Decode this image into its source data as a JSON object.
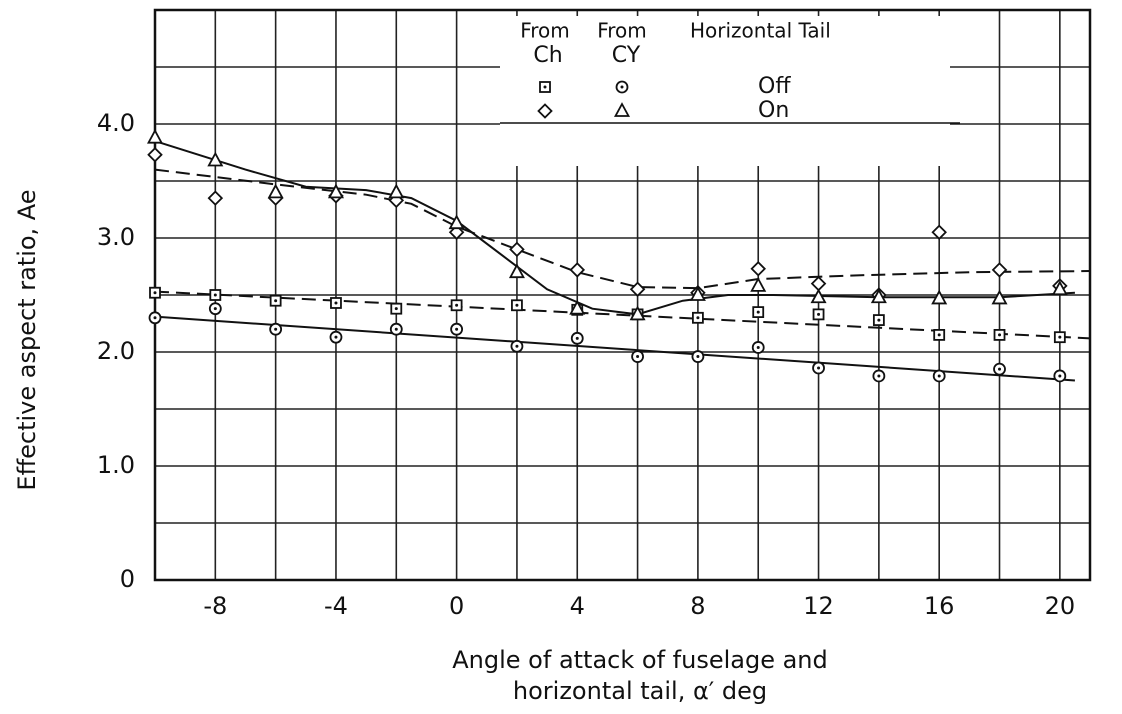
{
  "chart_data": {
    "type": "scatter",
    "xlabel": [
      "Angle of attack of fuselage and",
      "horizontal tail, α′ deg"
    ],
    "ylabel": "Effective aspect ratio, Ae",
    "xlim": [
      -10,
      21
    ],
    "ylim": [
      0,
      5
    ],
    "xticks": [
      -8,
      -4,
      0,
      4,
      8,
      12,
      16,
      20
    ],
    "yticks": [
      0,
      {
        "value": 1,
        "label": "1.0"
      },
      {
        "value": 2,
        "label": "2.0"
      },
      {
        "value": 3,
        "label": "3.0"
      },
      {
        "value": 4,
        "label": "4.0"
      }
    ],
    "xgrid": [
      -10,
      -8,
      -6,
      -4,
      -2,
      0,
      2,
      4,
      6,
      8,
      10,
      12,
      14,
      16,
      18,
      20
    ],
    "ygrid": [
      0.5,
      1,
      1.5,
      2,
      2.5,
      3,
      3.5,
      4,
      4.5
    ],
    "grid": true,
    "color": "#111111",
    "x": [
      -10,
      -8,
      -6,
      -4,
      -2,
      0,
      2,
      4,
      6,
      8,
      10,
      12,
      14,
      16,
      18,
      20
    ],
    "legend": {
      "columns": [
        "From",
        "From"
      ],
      "subcolumns": [
        "Ch",
        "CY"
      ],
      "header": "Horizontal Tail",
      "rows": [
        "Off",
        "On"
      ]
    },
    "series": [
      {
        "marker": "square",
        "values": [
          2.52,
          2.5,
          2.45,
          2.43,
          2.38,
          2.41,
          2.41,
          2.37,
          2.33,
          2.3,
          2.35,
          2.33,
          2.28,
          2.15,
          2.15,
          2.13
        ]
      },
      {
        "marker": "circle",
        "values": [
          2.3,
          2.38,
          2.2,
          2.13,
          2.2,
          2.2,
          2.05,
          2.12,
          1.96,
          1.96,
          2.04,
          1.86,
          1.79,
          1.79,
          1.85,
          1.79
        ]
      },
      {
        "marker": "diamond",
        "values": [
          3.73,
          3.35,
          3.35,
          3.37,
          3.33,
          3.05,
          2.9,
          2.72,
          2.55,
          2.52,
          2.73,
          2.6,
          2.5,
          3.05,
          2.72,
          2.58
        ]
      },
      {
        "marker": "triangle",
        "values": [
          3.88,
          3.68,
          3.4,
          3.4,
          3.4,
          3.13,
          2.7,
          2.38,
          2.33,
          2.5,
          2.58,
          2.48,
          2.48,
          2.47,
          2.47,
          2.55
        ]
      }
    ],
    "curves": [
      {
        "dash": false,
        "x": [
          -10,
          -7,
          -5,
          -3,
          -1.5,
          0,
          1.5,
          3,
          4.5,
          6,
          7.5,
          9,
          10.5,
          14,
          18,
          20.5
        ],
        "values": [
          3.85,
          3.6,
          3.45,
          3.42,
          3.35,
          3.15,
          2.85,
          2.55,
          2.38,
          2.33,
          2.45,
          2.5,
          2.5,
          2.48,
          2.48,
          2.52
        ]
      },
      {
        "dash": true,
        "x": [
          -10,
          -6,
          -3,
          -1.5,
          0,
          2,
          4,
          6,
          8,
          10,
          13,
          17,
          21
        ],
        "values": [
          3.6,
          3.47,
          3.38,
          3.3,
          3.1,
          2.9,
          2.7,
          2.57,
          2.56,
          2.64,
          2.67,
          2.7,
          2.71
        ]
      },
      {
        "dash": true,
        "x": [
          -10,
          21
        ],
        "values": [
          2.53,
          2.12
        ]
      },
      {
        "dash": false,
        "x": [
          -10,
          20.5
        ],
        "values": [
          2.31,
          1.75
        ]
      }
    ]
  }
}
